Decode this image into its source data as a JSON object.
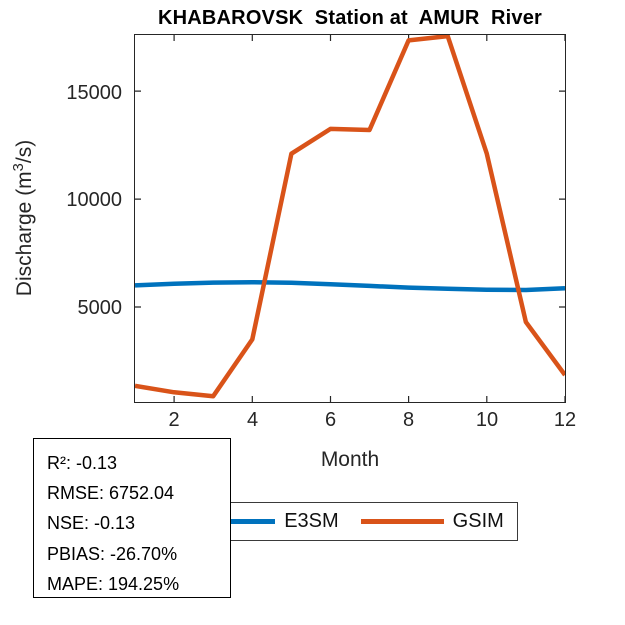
{
  "title": "KHABAROVSK  Station at  AMUR  River",
  "axes": {
    "xlabel": "Month",
    "ylabel_prefix": "Discharge (m",
    "ylabel_sup": "3",
    "ylabel_suffix": "/s)",
    "xtick_labels": [
      "2",
      "4",
      "6",
      "8",
      "10",
      "12"
    ],
    "ytick_labels": [
      "5000",
      "10000",
      "15000"
    ]
  },
  "legend": {
    "items": [
      {
        "label": "E3SM",
        "color": "#0072BD"
      },
      {
        "label": "GSIM",
        "color": "#D95319"
      }
    ]
  },
  "stats_box": {
    "lines": [
      "R²: -0.13",
      "RMSE: 6752.04",
      "NSE: -0.13",
      "PBIAS: -26.70%",
      "MAPE: 194.25%"
    ]
  },
  "chart_data": {
    "type": "line",
    "title": "KHABAROVSK  Station at  AMUR  River",
    "xlabel": "Month",
    "ylabel": "Discharge (m³/s)",
    "x": [
      1,
      2,
      3,
      4,
      5,
      6,
      7,
      8,
      9,
      10,
      11,
      12
    ],
    "series": [
      {
        "name": "E3SM",
        "color": "#0072BD",
        "values": [
          6000,
          6080,
          6130,
          6150,
          6120,
          6050,
          5980,
          5900,
          5850,
          5800,
          5790,
          5870
        ]
      },
      {
        "name": "GSIM",
        "color": "#D95319",
        "values": [
          1350,
          1050,
          870,
          3500,
          12100,
          13250,
          13200,
          17350,
          17550,
          12100,
          4300,
          1850
        ]
      }
    ],
    "xlim": [
      1,
      12
    ],
    "ylim": [
      600,
      17600
    ],
    "xticks": [
      2,
      4,
      6,
      8,
      10,
      12
    ],
    "yticks": [
      5000,
      10000,
      15000
    ],
    "grid": false,
    "legend_position": "below-axis-centered",
    "stats": {
      "R2": -0.13,
      "RMSE": 6752.04,
      "NSE": -0.13,
      "PBIAS_pct": -26.7,
      "MAPE_pct": 194.25
    }
  },
  "colors": {
    "axis": "#262626",
    "text": "#262626",
    "title": "#000000",
    "background": "#ffffff"
  }
}
